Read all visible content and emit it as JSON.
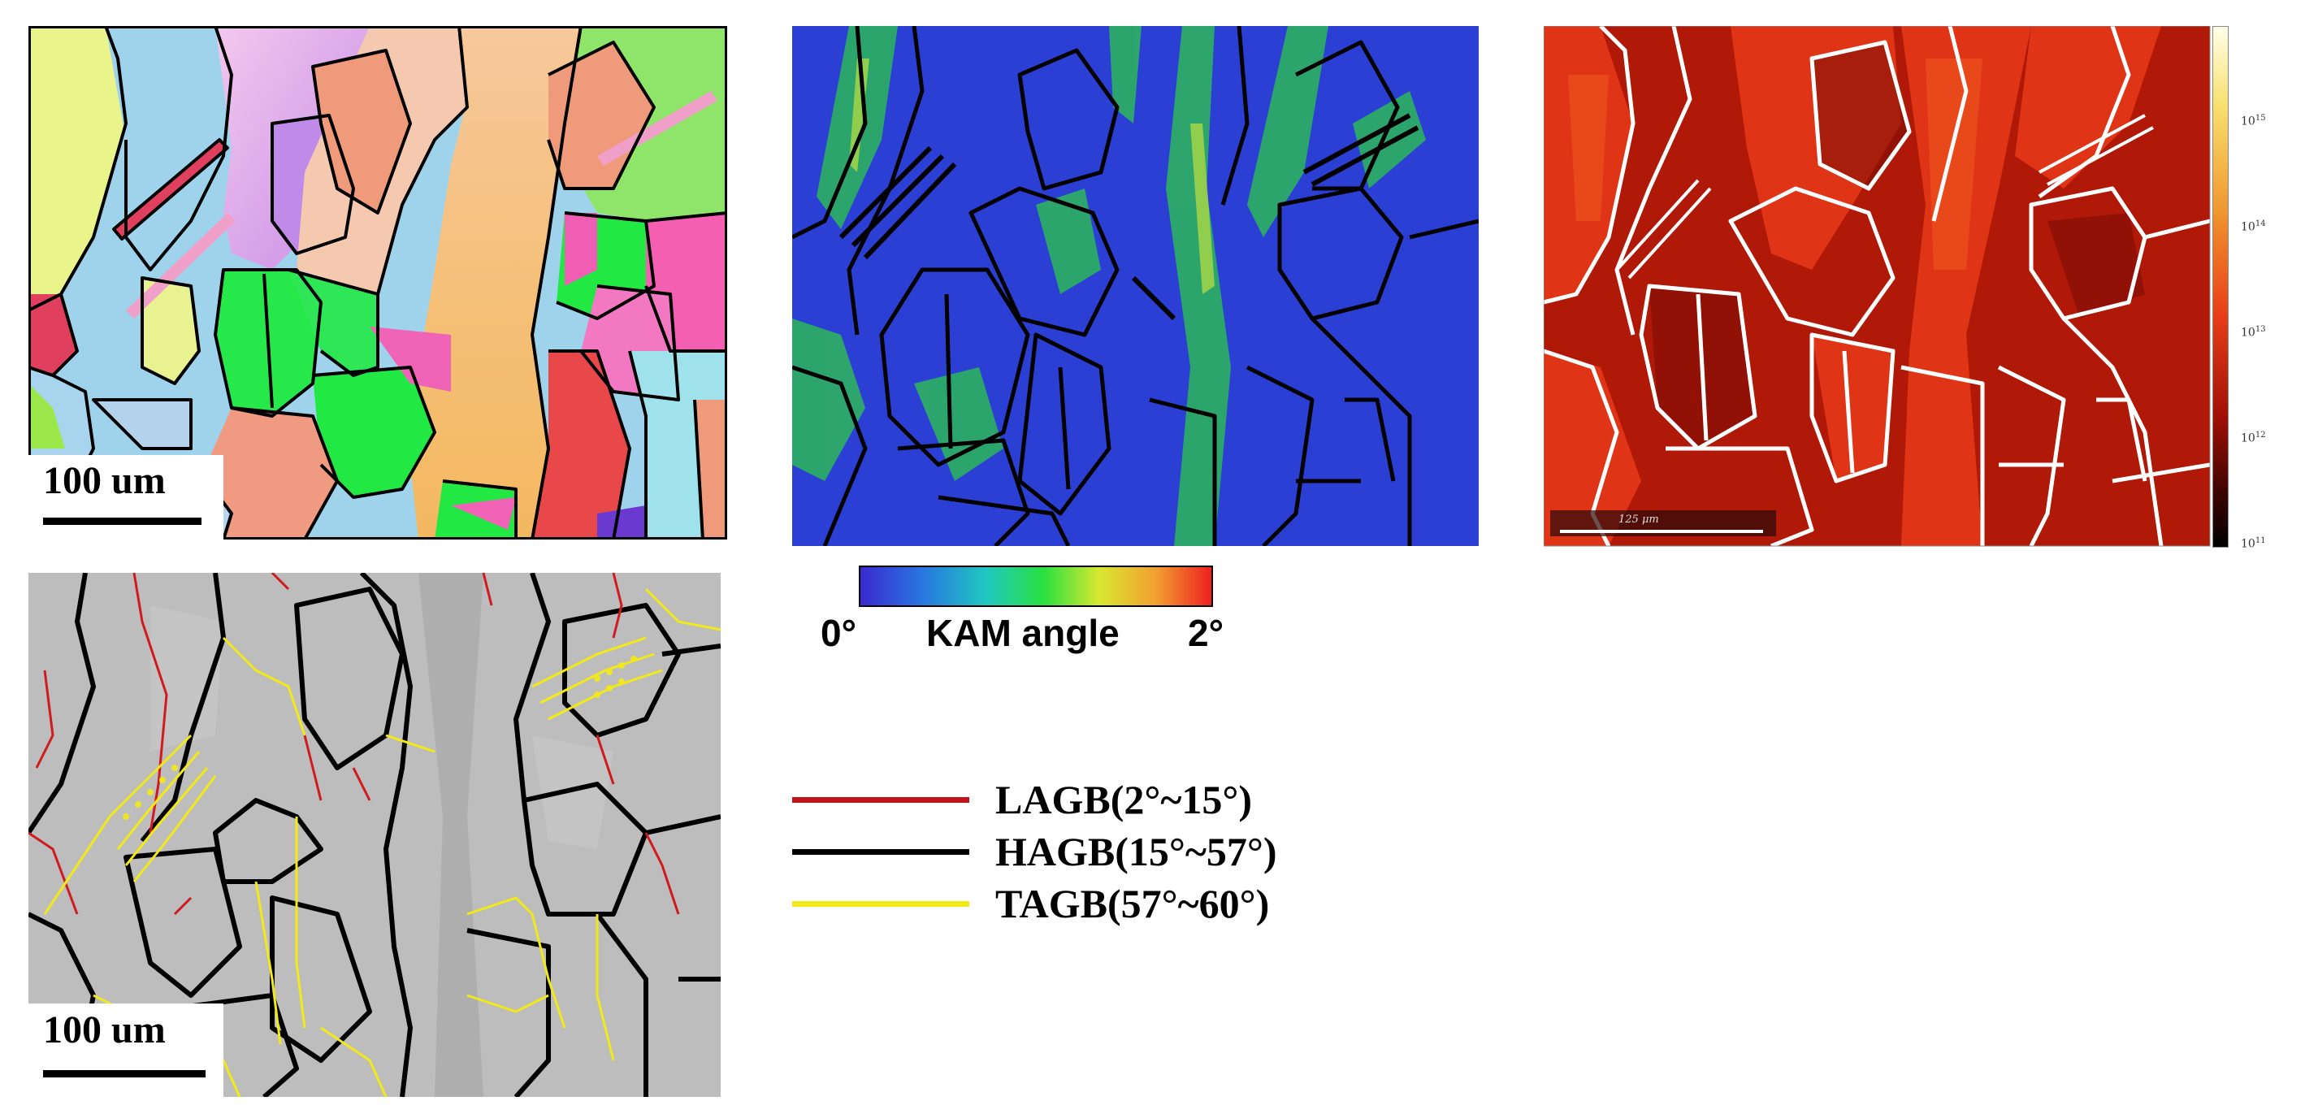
{
  "panels": {
    "ipf_map": {
      "scale_bar_label": "100 um"
    },
    "kam_map": {
      "colorbar_min_label": "0°",
      "colorbar_title": "KAM angle",
      "colorbar_max_label": "2°",
      "colors": {
        "low": "#2a3ad0",
        "mid": "#22d040",
        "high": "#ee2020"
      }
    },
    "gnd_map": {
      "scale_bar_label": "125 μm",
      "colorbar_ticks": [
        {
          "base": "10",
          "exp": "15"
        },
        {
          "base": "10",
          "exp": "14"
        },
        {
          "base": "10",
          "exp": "13"
        },
        {
          "base": "10",
          "exp": "12"
        },
        {
          "base": "10",
          "exp": "11"
        }
      ]
    },
    "boundary_map": {
      "scale_bar_label": "100 um"
    }
  },
  "legend": [
    {
      "label": "LAGB(2°~15°)",
      "color": "#c0141c"
    },
    {
      "label": "HAGB(15°~57°)",
      "color": "#000000"
    },
    {
      "label": "TAGB(57°~60°)",
      "color": "#f2ea18"
    }
  ]
}
